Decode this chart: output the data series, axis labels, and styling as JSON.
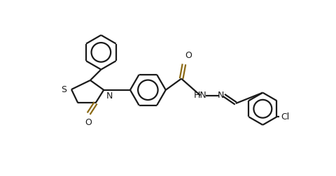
{
  "bg_color": "#ffffff",
  "line_color": "#1a1a1a",
  "bond_color_double_o": "#8B6914",
  "text_color": "#1a1a1a",
  "label_O": "O",
  "label_S": "S",
  "label_N": "N",
  "label_HN_N": "HN—N",
  "label_HN": "HN",
  "label_Cl": "Cl",
  "label_N2": "N",
  "figsize": [
    4.8,
    2.52
  ],
  "dpi": 100
}
